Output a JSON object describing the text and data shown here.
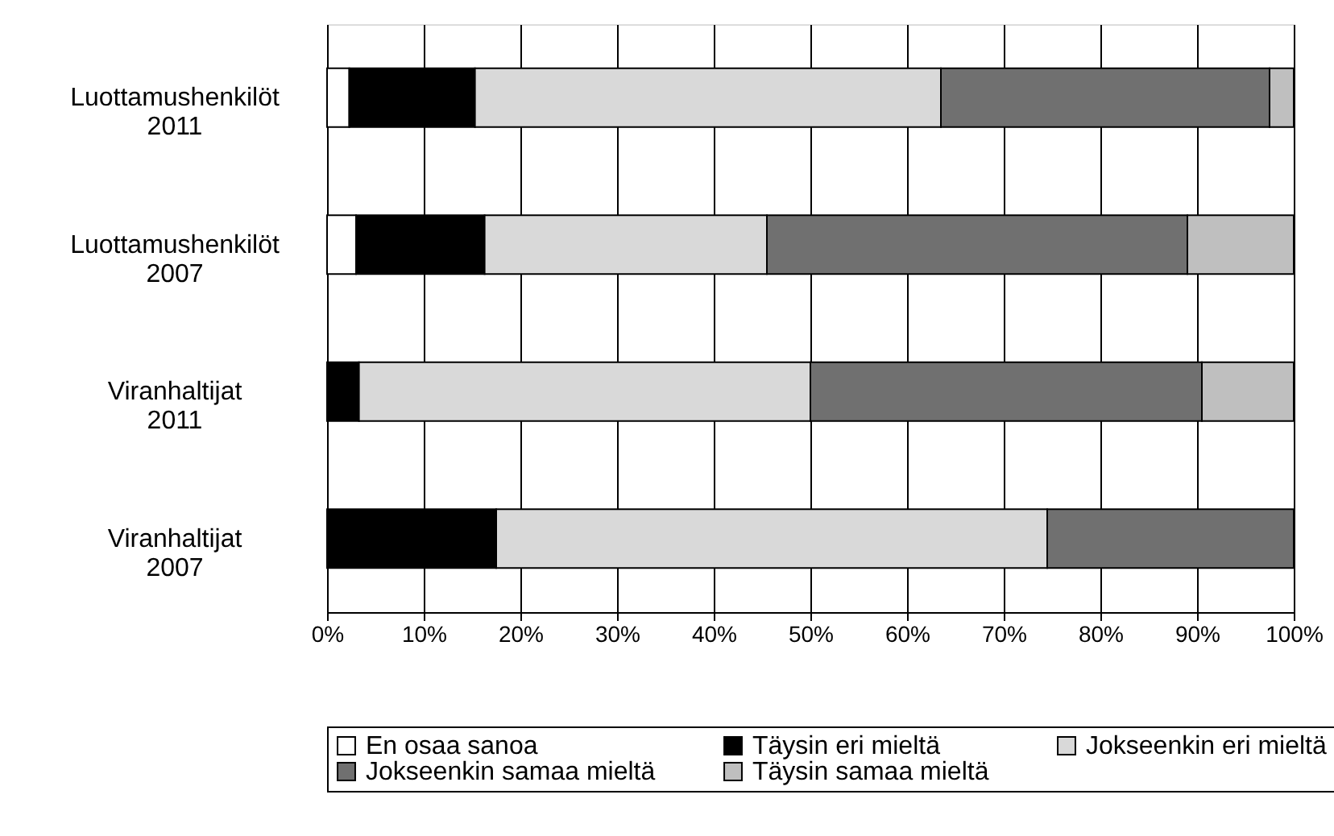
{
  "chart_data": {
    "type": "bar",
    "orientation": "horizontal",
    "stacked": true,
    "categories": [
      "Luottamushenkilöt 2011",
      "Luottamushenkilöt 2007",
      "Viranhaltijat 2011",
      "Viranhaltijat 2007"
    ],
    "series": [
      {
        "name": "En osaa sanoa",
        "color": "#ffffff",
        "values": [
          2.3,
          3.0,
          null,
          null
        ]
      },
      {
        "name": "Täysin eri mieltä",
        "color": "#000000",
        "values": [
          13.0,
          13.3,
          3.3,
          17.5
        ]
      },
      {
        "name": "Jokseenkin eri mieltä",
        "color": "#d9d9d9",
        "values": [
          48.2,
          29.2,
          46.7,
          57.0
        ]
      },
      {
        "name": "Jokseenkin samaa mieltä",
        "color": "#707070",
        "values": [
          34.0,
          43.5,
          40.5,
          25.5
        ]
      },
      {
        "name": "Täysin samaa mieltä",
        "color": "#bfbfbf",
        "values": [
          2.5,
          11.0,
          9.5,
          null
        ]
      }
    ],
    "xlim": [
      0,
      100
    ],
    "xticks": [
      {
        "value": 0,
        "label": "0%"
      },
      {
        "value": 10,
        "label": "10%"
      },
      {
        "value": 20,
        "label": "20%"
      },
      {
        "value": 30,
        "label": "30%"
      },
      {
        "value": 40,
        "label": "40%"
      },
      {
        "value": 50,
        "label": "50%"
      },
      {
        "value": 60,
        "label": "60%"
      },
      {
        "value": 70,
        "label": "70%"
      },
      {
        "value": 80,
        "label": "80%"
      },
      {
        "value": 90,
        "label": "90%"
      },
      {
        "value": 100,
        "label": "100%"
      }
    ],
    "grid": "x",
    "legend": "bottom"
  }
}
